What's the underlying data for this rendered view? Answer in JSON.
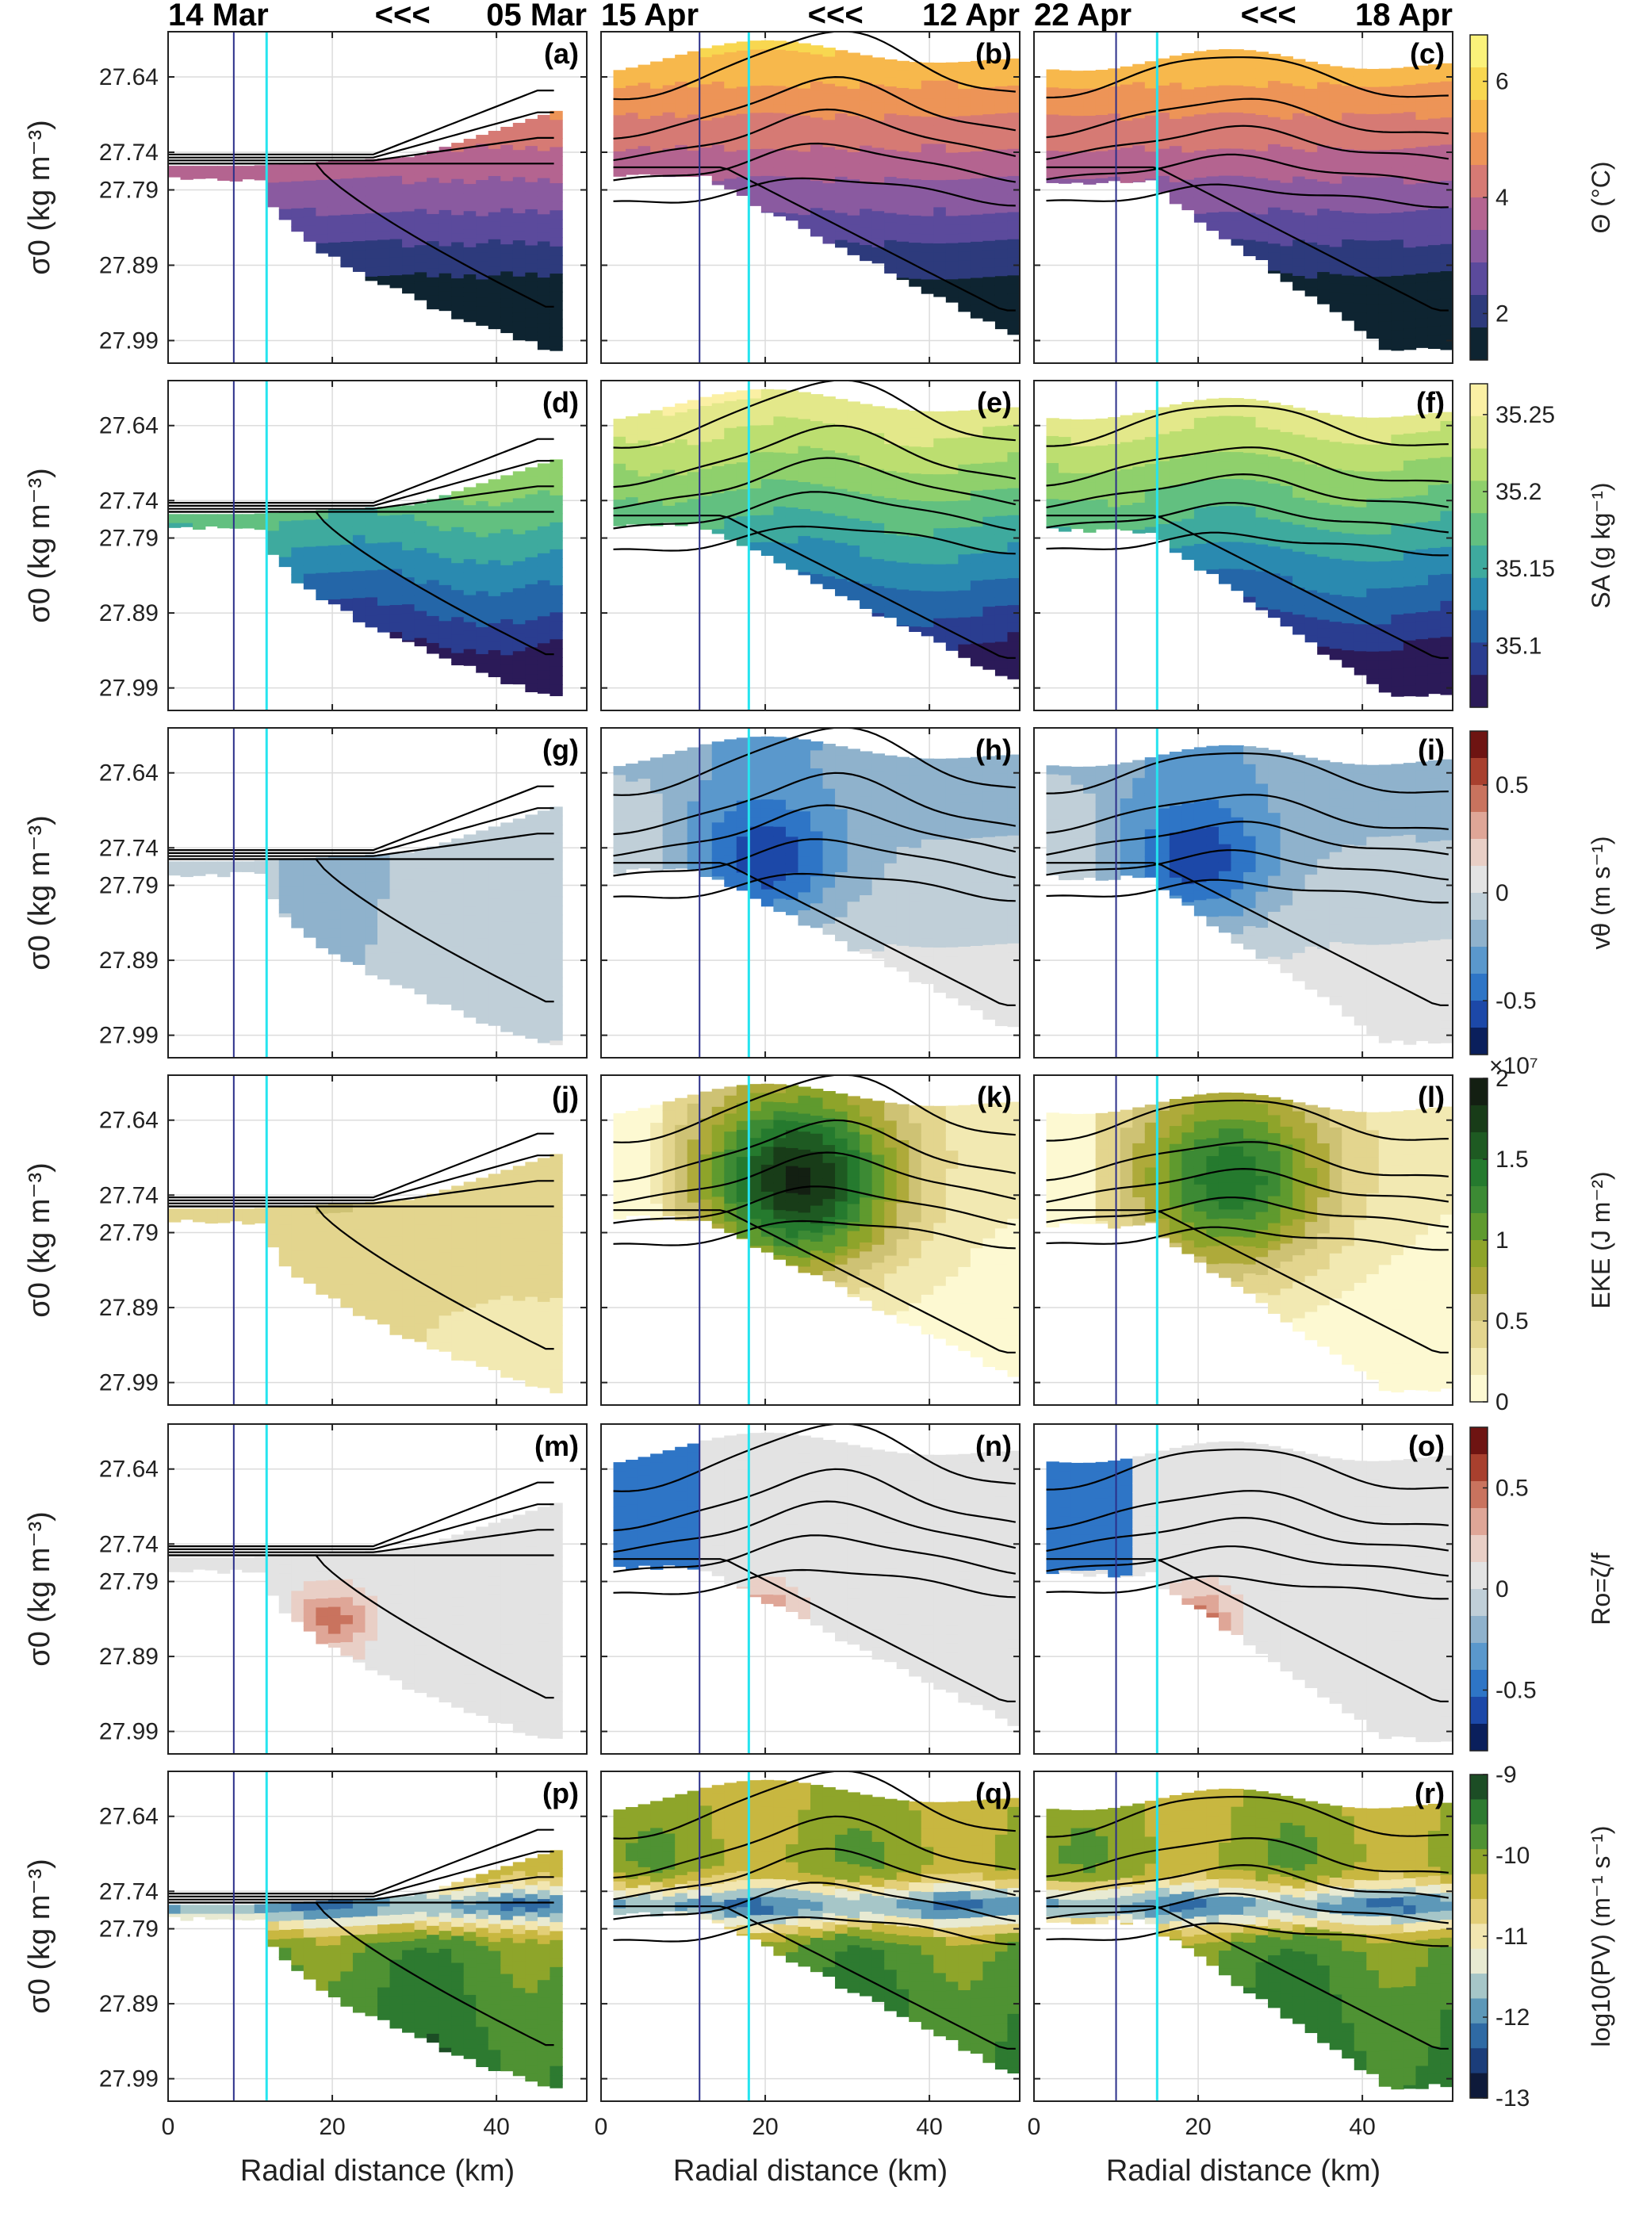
{
  "chart_data": {
    "type": "contour",
    "rows": 6,
    "columns": 3,
    "date_headers": [
      {
        "left": "14 Mar",
        "mid": "<<<",
        "right": "05 Mar"
      },
      {
        "left": "15 Apr",
        "mid": "<<<",
        "right": "12 Apr"
      },
      {
        "left": "22 Apr",
        "mid": "<<<",
        "right": "18 Apr"
      }
    ],
    "x_axis": {
      "label": "Radial distance (km)",
      "range": [
        0,
        50
      ],
      "ticks": [
        "0",
        "20",
        "40"
      ]
    },
    "y_axis": {
      "label": "σ0 (kg m⁻³)",
      "ticks": [
        "27.64",
        "27.74",
        "27.79",
        "27.89",
        "27.99"
      ]
    },
    "vertical_lines": [
      {
        "column": 0,
        "blue_km": 8,
        "cyan_km": 12
      },
      {
        "column": 1,
        "blue_km": 12,
        "cyan_km": 18
      },
      {
        "column": 2,
        "blue_km": 10,
        "cyan_km": 15
      }
    ],
    "panel_labels": [
      "(a)",
      "(b)",
      "(c)",
      "(d)",
      "(e)",
      "(f)",
      "(g)",
      "(h)",
      "(i)",
      "(j)",
      "(k)",
      "(l)",
      "(m)",
      "(n)",
      "(o)",
      "(p)",
      "(q)",
      "(r)"
    ],
    "variables": [
      {
        "label": "Θ (°C)",
        "range": [
          1.2,
          6.8
        ],
        "ticks": [
          "2",
          "4",
          "6"
        ],
        "multiplier": "",
        "colors": [
          "#0e2431",
          "#2d3a7c",
          "#5b4a9c",
          "#8a5aa0",
          "#b46490",
          "#d67a74",
          "#ed9457",
          "#f7b84c",
          "#f8d750",
          "#fbf27a"
        ]
      },
      {
        "label": "SA (g kg⁻¹)",
        "range": [
          35.06,
          35.27
        ],
        "ticks": [
          "35.1",
          "35.15",
          "35.2",
          "35.25"
        ],
        "multiplier": "",
        "colors": [
          "#2b1a58",
          "#2a3d90",
          "#2466a8",
          "#2a8ab0",
          "#3eaa9e",
          "#62c080",
          "#8fd06c",
          "#bcde70",
          "#e3e88a",
          "#fbf0a4"
        ]
      },
      {
        "label": "vθ (m s⁻¹)",
        "range": [
          -0.75,
          0.75
        ],
        "ticks": [
          "-0.5",
          "0",
          "0.5"
        ],
        "multiplier": "",
        "colors": [
          "#0a1f5c",
          "#1c48a8",
          "#2e75c6",
          "#5a98cc",
          "#8fb2cc",
          "#c0cfd8",
          "#e3e3e3",
          "#e9cfc6",
          "#dfa697",
          "#c9735e",
          "#a8402e",
          "#6e1412"
        ]
      },
      {
        "label": "EKE (J m⁻²)",
        "range": [
          0,
          2
        ],
        "ticks": [
          "0",
          "0.5",
          "1",
          "1.5",
          "2"
        ],
        "multiplier": "×10⁷",
        "colors": [
          "#fdf9d2",
          "#f2e9b2",
          "#e3d58e",
          "#cec274",
          "#aeaa3a",
          "#8ea42a",
          "#5f9a2e",
          "#3c8a34",
          "#257a2e",
          "#1e5a22",
          "#183c18",
          "#131f12"
        ]
      },
      {
        "label": "Ro=ζ/f",
        "range": [
          -0.8,
          0.8
        ],
        "ticks": [
          "-0.5",
          "0",
          "0.5"
        ],
        "multiplier": "",
        "colors": [
          "#0a1f5c",
          "#1c48a8",
          "#2e75c6",
          "#5a98cc",
          "#8fb2cc",
          "#c0cfd8",
          "#e3e3e3",
          "#e9cfc6",
          "#dfa697",
          "#c9735e",
          "#a8402e",
          "#6e1412"
        ]
      },
      {
        "label": "log10(PV) (m⁻¹ s⁻¹)",
        "range": [
          -13,
          -9
        ],
        "ticks": [
          "-13",
          "-12",
          "-11",
          "-10",
          "-9"
        ],
        "multiplier": "",
        "colors": [
          "#0e1a3a",
          "#1b3d7a",
          "#2f6aa4",
          "#5d98b8",
          "#a6c6c8",
          "#e8ead2",
          "#f2e6b0",
          "#e3cf78",
          "#c8b740",
          "#8ea52a",
          "#4f9233",
          "#2d7a30",
          "#1c4d25"
        ]
      }
    ]
  }
}
